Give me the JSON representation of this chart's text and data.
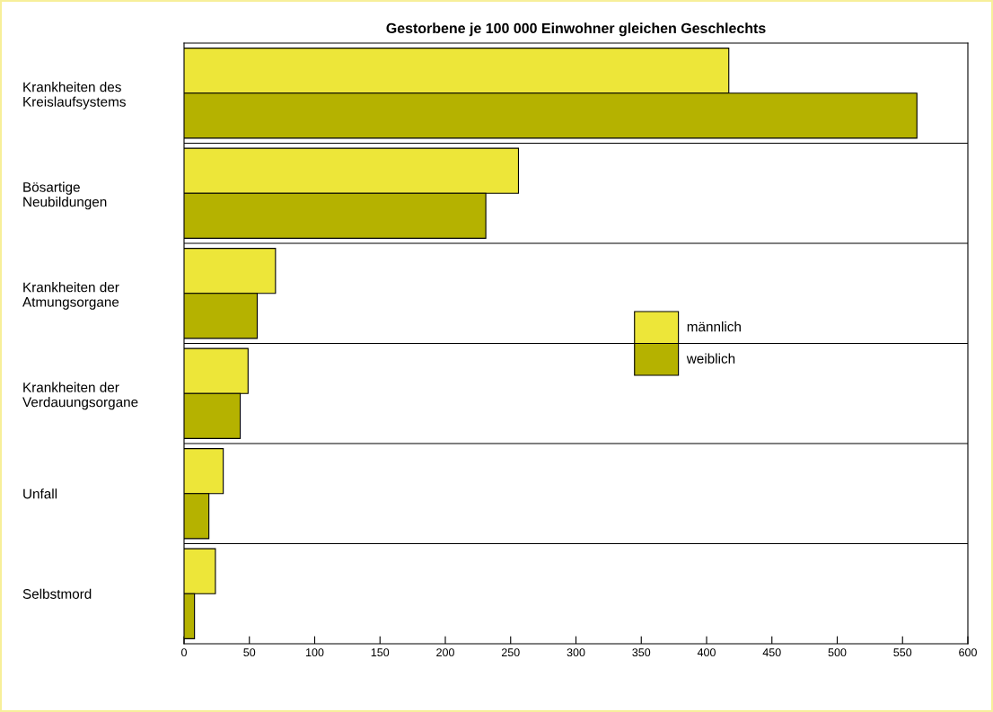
{
  "chart_data": {
    "type": "bar",
    "orientation": "horizontal",
    "title": "Gestorbene je 100 000 Einwohner gleichen Geschlechts",
    "categories": [
      "Krankheiten des\nKreislaufsystems",
      "Bösartige\nNeubildungen",
      "Krankheiten der\nAtmungsorgane",
      "Krankheiten der\nVerdauungsorgane",
      "Unfall",
      "Selbstmord"
    ],
    "series": [
      {
        "name": "männlich",
        "color": "#ede639",
        "values": [
          417,
          256,
          70,
          49,
          30,
          24
        ]
      },
      {
        "name": "weiblich",
        "color": "#b5b200",
        "values": [
          561,
          231,
          56,
          43,
          19,
          8
        ]
      }
    ],
    "xlim": [
      0,
      600
    ],
    "xticks": [
      0,
      50,
      100,
      150,
      200,
      250,
      300,
      350,
      400,
      450,
      500,
      550,
      600
    ],
    "legend": "center right"
  }
}
